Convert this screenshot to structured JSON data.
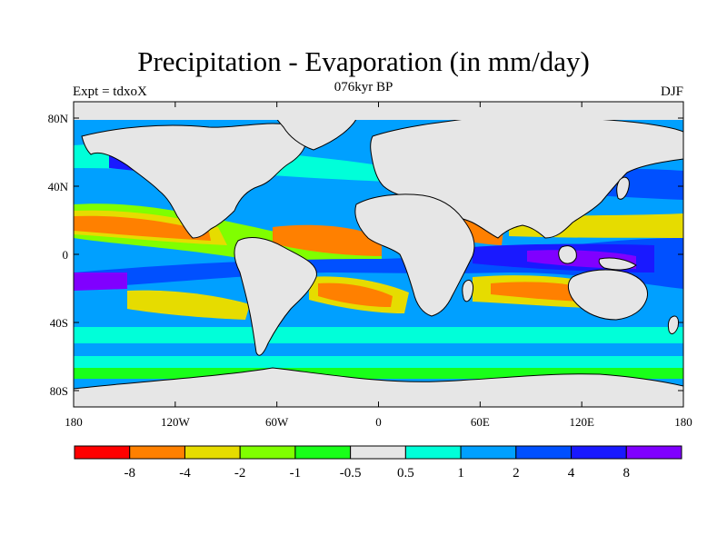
{
  "title": "Precipitation - Evaporation (in mm/day)",
  "left_label": "Expt = tdxoX",
  "center_label": "076kyr BP",
  "right_label": "DJF",
  "map": {
    "lat_ticks": [
      "80N",
      "40N",
      "0",
      "40S",
      "80S"
    ],
    "lon_ticks": [
      "180",
      "120W",
      "60W",
      "0",
      "60E",
      "120E",
      "180"
    ],
    "land_color": "#e6e6e6",
    "coastline_color": "#000000"
  },
  "colorbar": {
    "colors": [
      "#ff0000",
      "#ff8000",
      "#e6dc00",
      "#80ff00",
      "#19ff19",
      "#e6e6e6",
      "#00ffd9",
      "#00a0ff",
      "#0050ff",
      "#1919ff",
      "#8000ff"
    ],
    "labels": [
      "-8",
      "-4",
      "-2",
      "-1",
      "-0.5",
      "0.5",
      "1",
      "2",
      "4",
      "8"
    ]
  }
}
